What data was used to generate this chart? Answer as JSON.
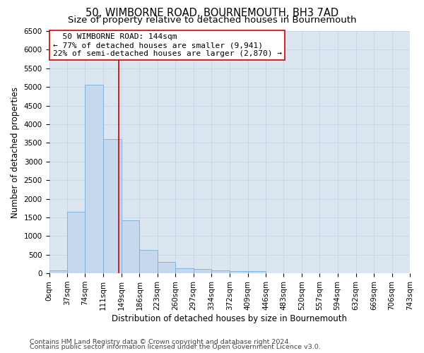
{
  "title": "50, WIMBORNE ROAD, BOURNEMOUTH, BH3 7AD",
  "subtitle": "Size of property relative to detached houses in Bournemouth",
  "xlabel": "Distribution of detached houses by size in Bournemouth",
  "ylabel": "Number of detached properties",
  "footer_line1": "Contains HM Land Registry data © Crown copyright and database right 2024.",
  "footer_line2": "Contains public sector information licensed under the Open Government Licence v3.0.",
  "bin_edges": [
    0,
    37,
    74,
    111,
    149,
    186,
    223,
    260,
    297,
    334,
    372,
    409,
    446,
    483,
    520,
    557,
    594,
    632,
    669,
    706,
    743
  ],
  "bin_counts": [
    75,
    1650,
    5060,
    3600,
    1420,
    620,
    300,
    130,
    120,
    80,
    55,
    60,
    0,
    0,
    0,
    0,
    0,
    0,
    0,
    0
  ],
  "bar_color": "#c5d8ee",
  "bar_edge_color": "#7aadd4",
  "property_size": 144,
  "vline_color": "#cc0000",
  "annotation_line1": "  50 WIMBORNE ROAD: 144sqm  ",
  "annotation_line2": "← 77% of detached houses are smaller (9,941)",
  "annotation_line3": "22% of semi-detached houses are larger (2,870) →",
  "annotation_box_color": "#ffffff",
  "annotation_box_edge": "#cc0000",
  "ylim": [
    0,
    6500
  ],
  "yticks": [
    0,
    500,
    1000,
    1500,
    2000,
    2500,
    3000,
    3500,
    4000,
    4500,
    5000,
    5500,
    6000,
    6500
  ],
  "grid_color": "#c8d4e8",
  "background_color": "#dce6f0",
  "title_fontsize": 10.5,
  "subtitle_fontsize": 9.5,
  "axis_label_fontsize": 8.5,
  "tick_fontsize": 7.5,
  "annotation_fontsize": 8,
  "footer_fontsize": 6.8
}
